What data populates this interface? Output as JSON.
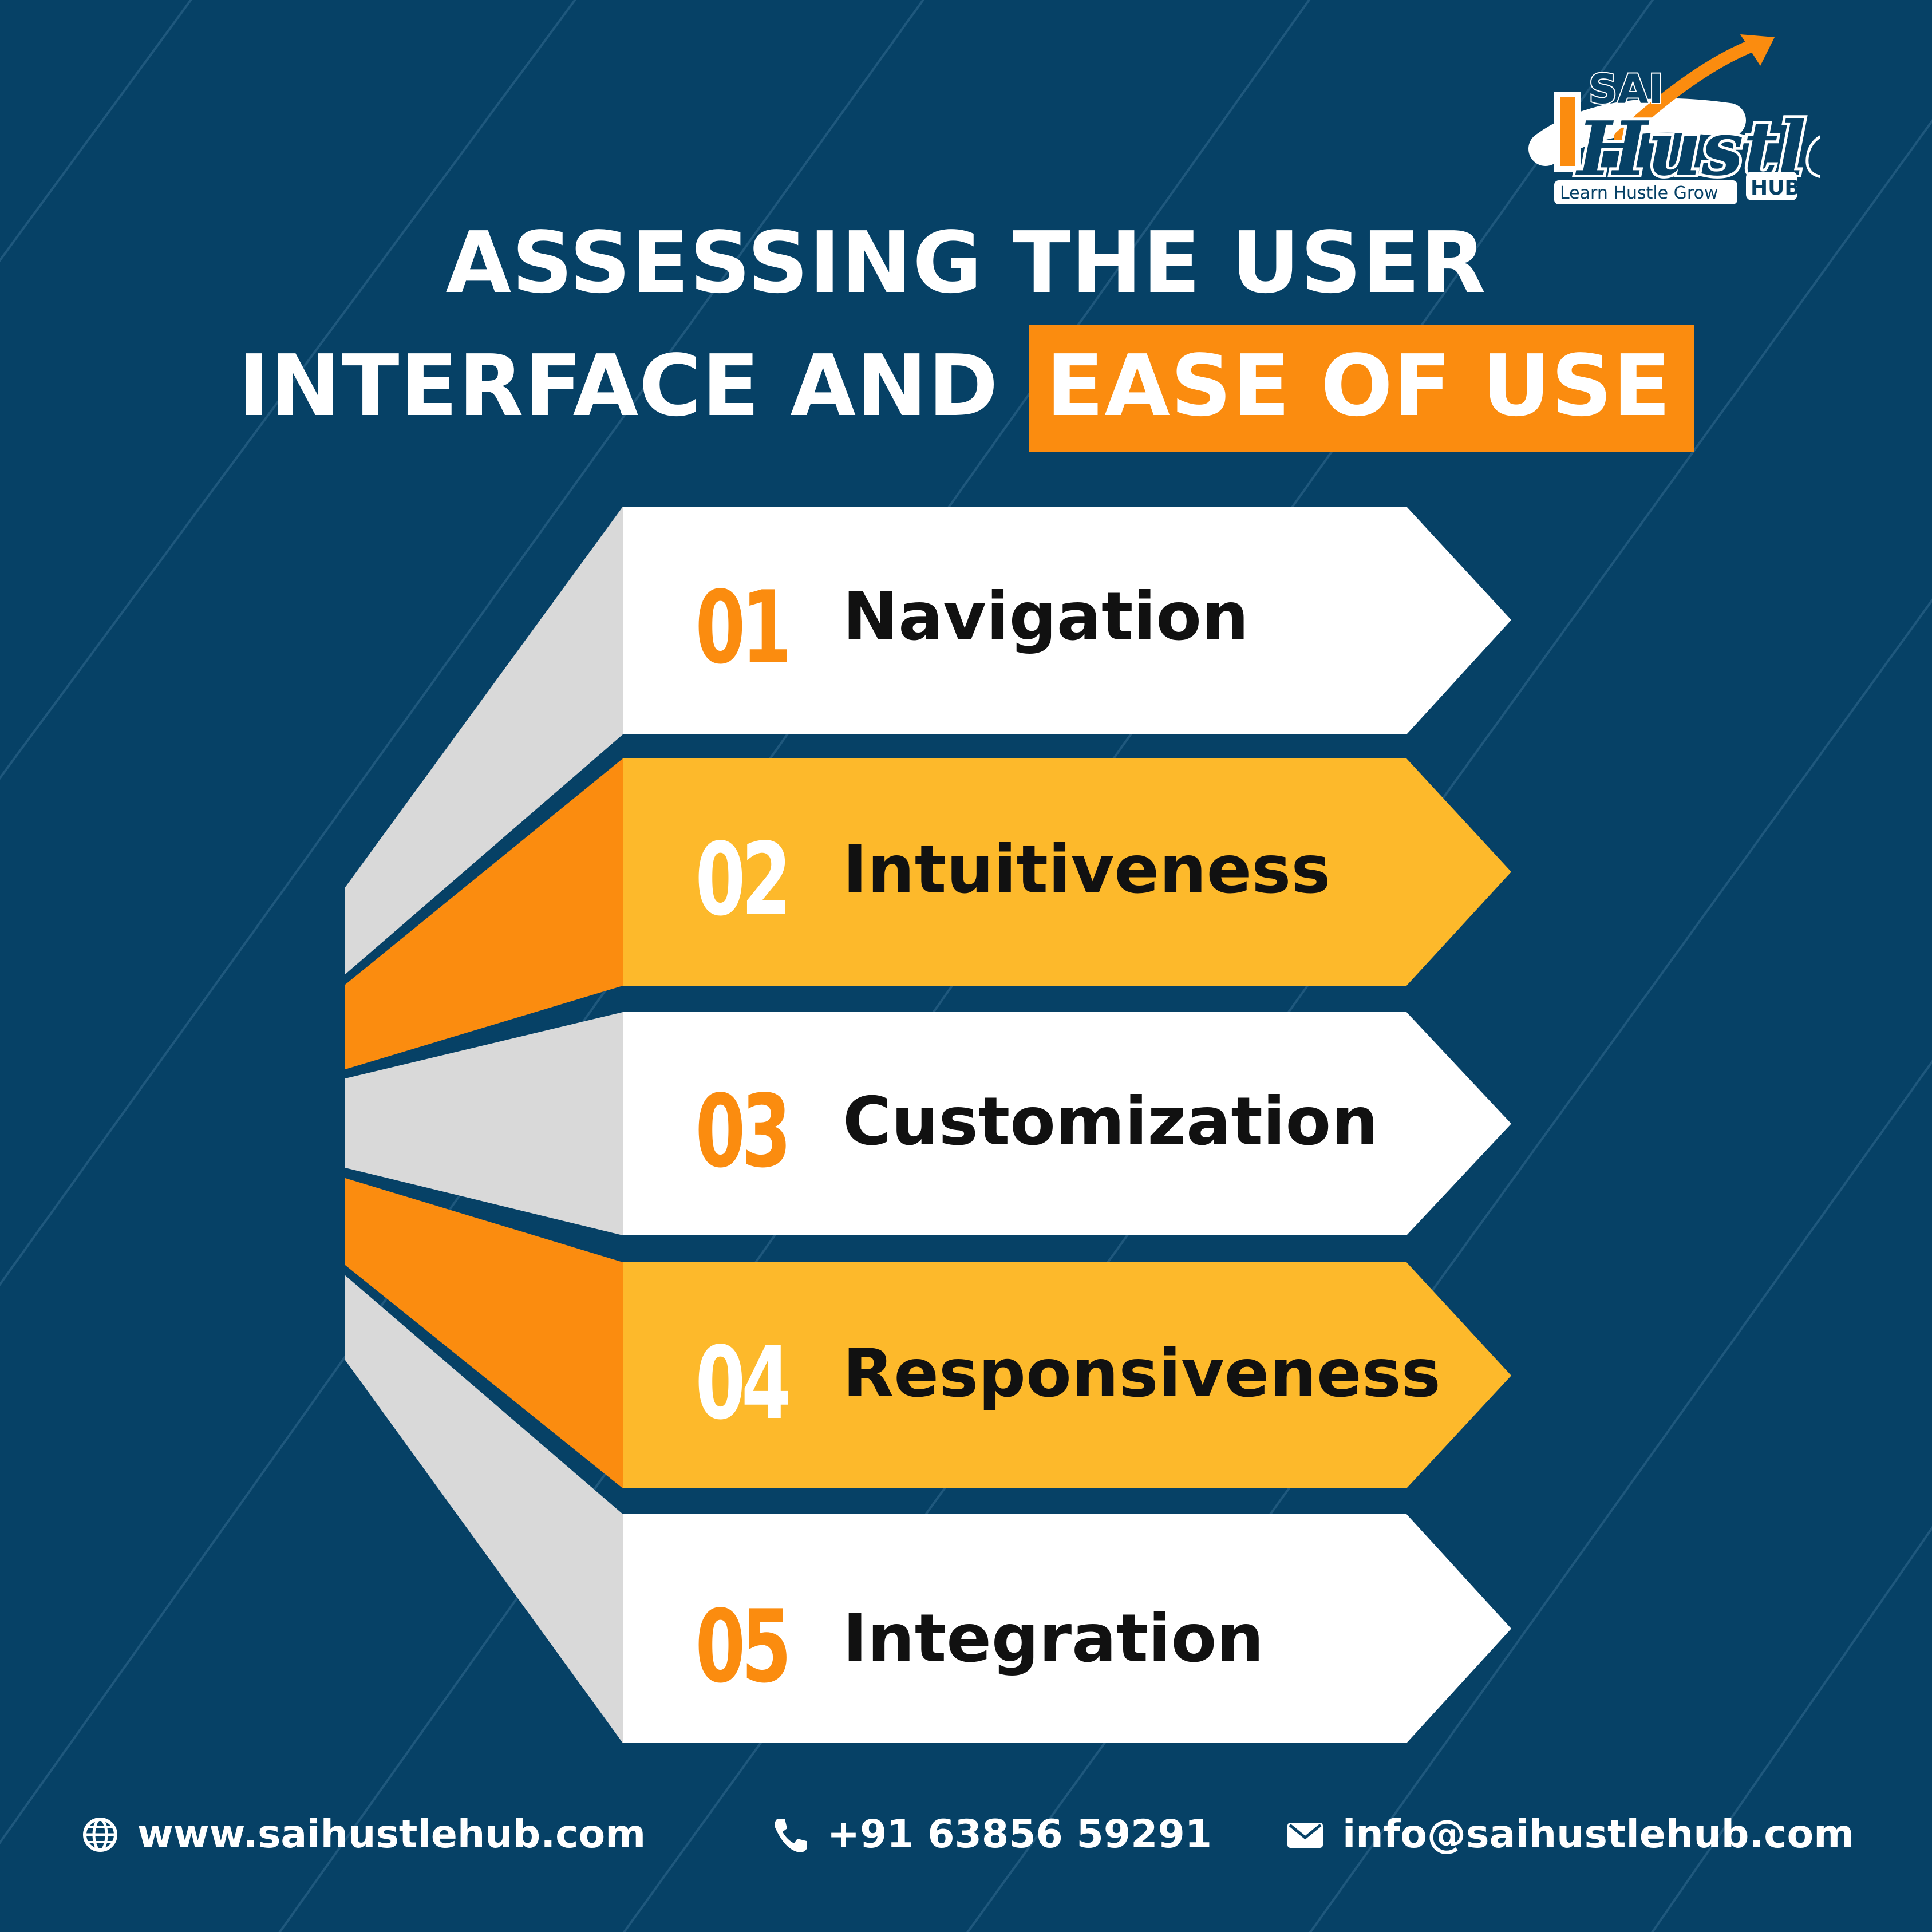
{
  "brand": {
    "name_top": "SAI",
    "name_main": "Hustle",
    "name_sub": "HUB",
    "tagline": "Learn Hustle Grow"
  },
  "title": {
    "line1": "ASSESSING THE USER",
    "line2_plain": "INTERFACE AND",
    "line2_highlight": "EASE OF USE"
  },
  "items": [
    {
      "number": "01",
      "label": "Navigation"
    },
    {
      "number": "02",
      "label": "Intuitiveness"
    },
    {
      "number": "03",
      "label": "Customization"
    },
    {
      "number": "04",
      "label": "Responsiveness"
    },
    {
      "number": "05",
      "label": "Integration"
    }
  ],
  "footer": {
    "website": "www.saihustlehub.com",
    "phone": "+91 63856 59291",
    "email": "info@saihustlehub.com"
  },
  "colors": {
    "background": "#064166",
    "orange": "#fb8c0f",
    "yellow": "#fdb92b",
    "white": "#ffffff",
    "grey": "#d9d9d9"
  },
  "icons": [
    "globe-icon",
    "phone-icon",
    "mail-icon"
  ]
}
